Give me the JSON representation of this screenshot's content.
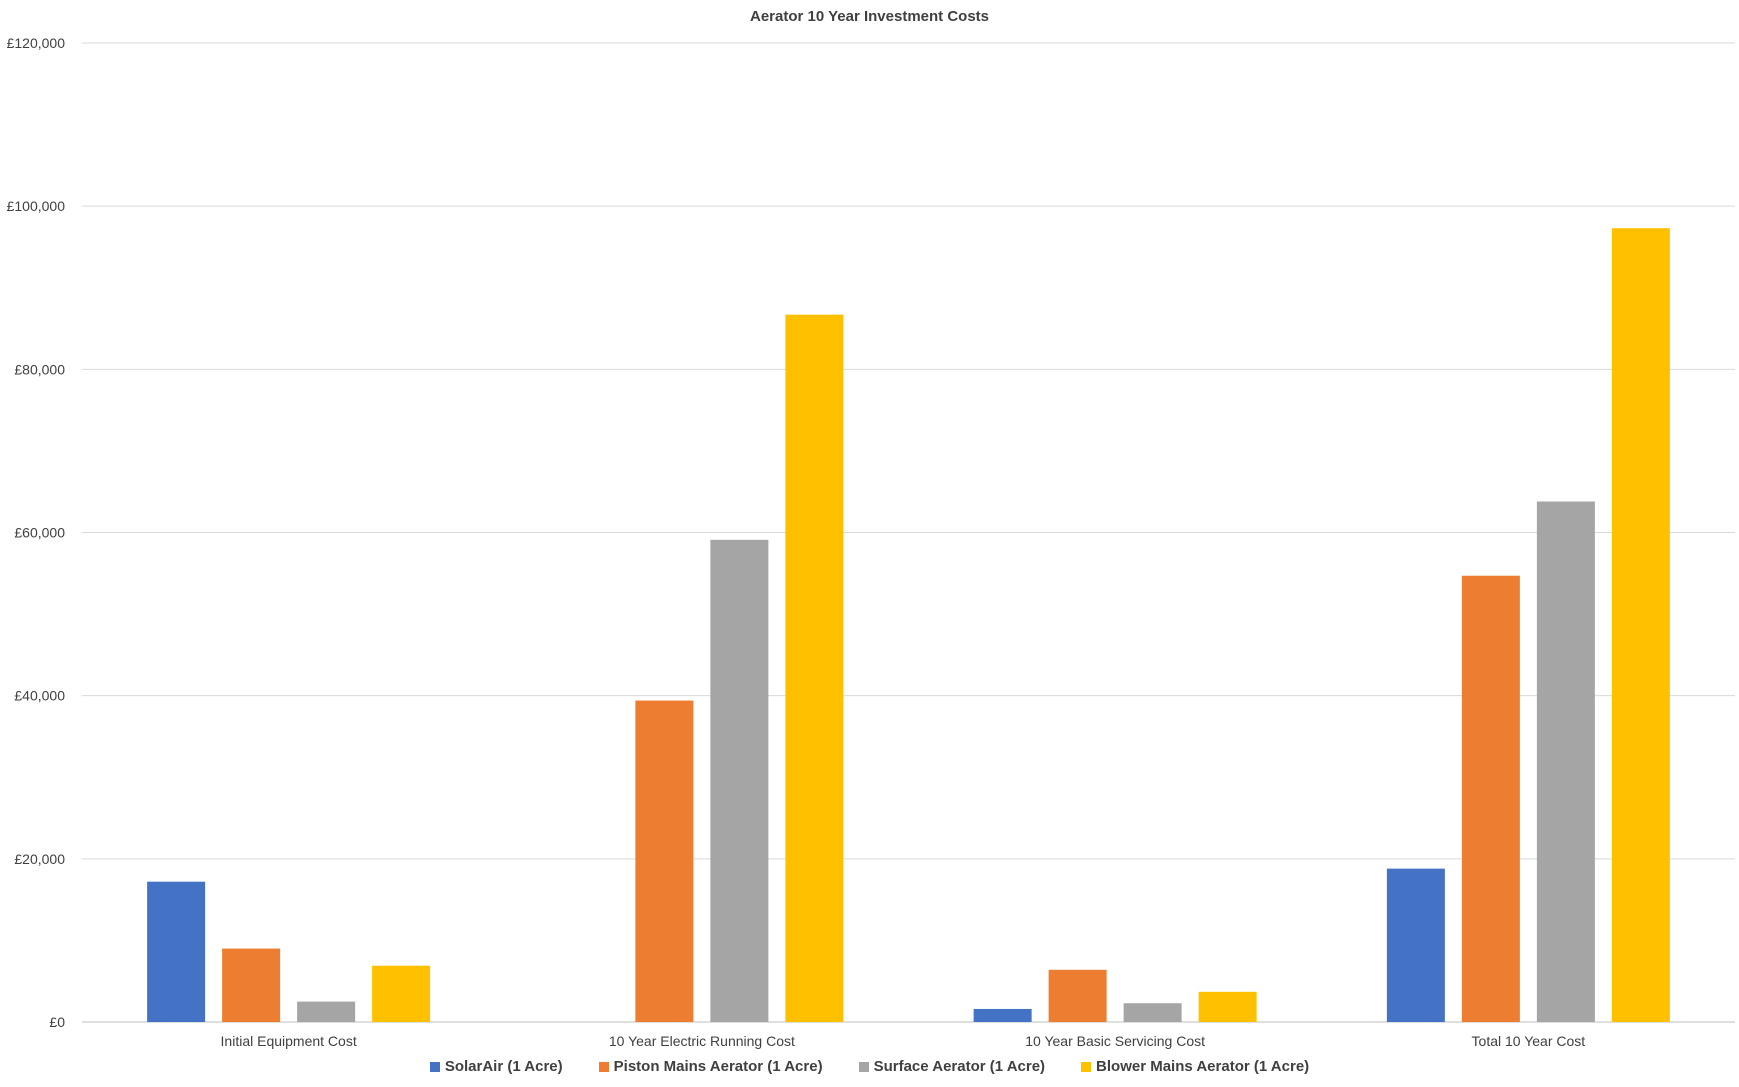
{
  "chart_data": {
    "type": "bar",
    "title": "Aerator 10 Year Investment Costs",
    "xlabel": "",
    "ylabel": "",
    "ylim": [
      0,
      120000
    ],
    "yticks": [
      0,
      20000,
      40000,
      60000,
      80000,
      100000,
      120000
    ],
    "ytick_labels": [
      "£0",
      "£20,000",
      "£40,000",
      "£60,000",
      "£80,000",
      "£100,000",
      "£120,000"
    ],
    "grid": true,
    "legend_position": "bottom",
    "categories": [
      "Initial Equipment Cost",
      "10 Year Electric Running Cost",
      "10 Year Basic Servicing Cost",
      "Total 10 Year Cost"
    ],
    "series": [
      {
        "name": "SolarAir (1 Acre)",
        "color": "#4472C4",
        "values": [
          17200,
          0,
          1600,
          18800
        ]
      },
      {
        "name": "Piston Mains Aerator (1 Acre)",
        "color": "#ED7D31",
        "values": [
          9000,
          39400,
          6400,
          54700
        ]
      },
      {
        "name": "Surface Aerator (1 Acre)",
        "color": "#A5A5A5",
        "values": [
          2500,
          59100,
          2300,
          63800
        ]
      },
      {
        "name": "Blower Mains Aerator (1 Acre)",
        "color": "#FFC000",
        "values": [
          6900,
          86700,
          3700,
          97300
        ]
      }
    ]
  }
}
